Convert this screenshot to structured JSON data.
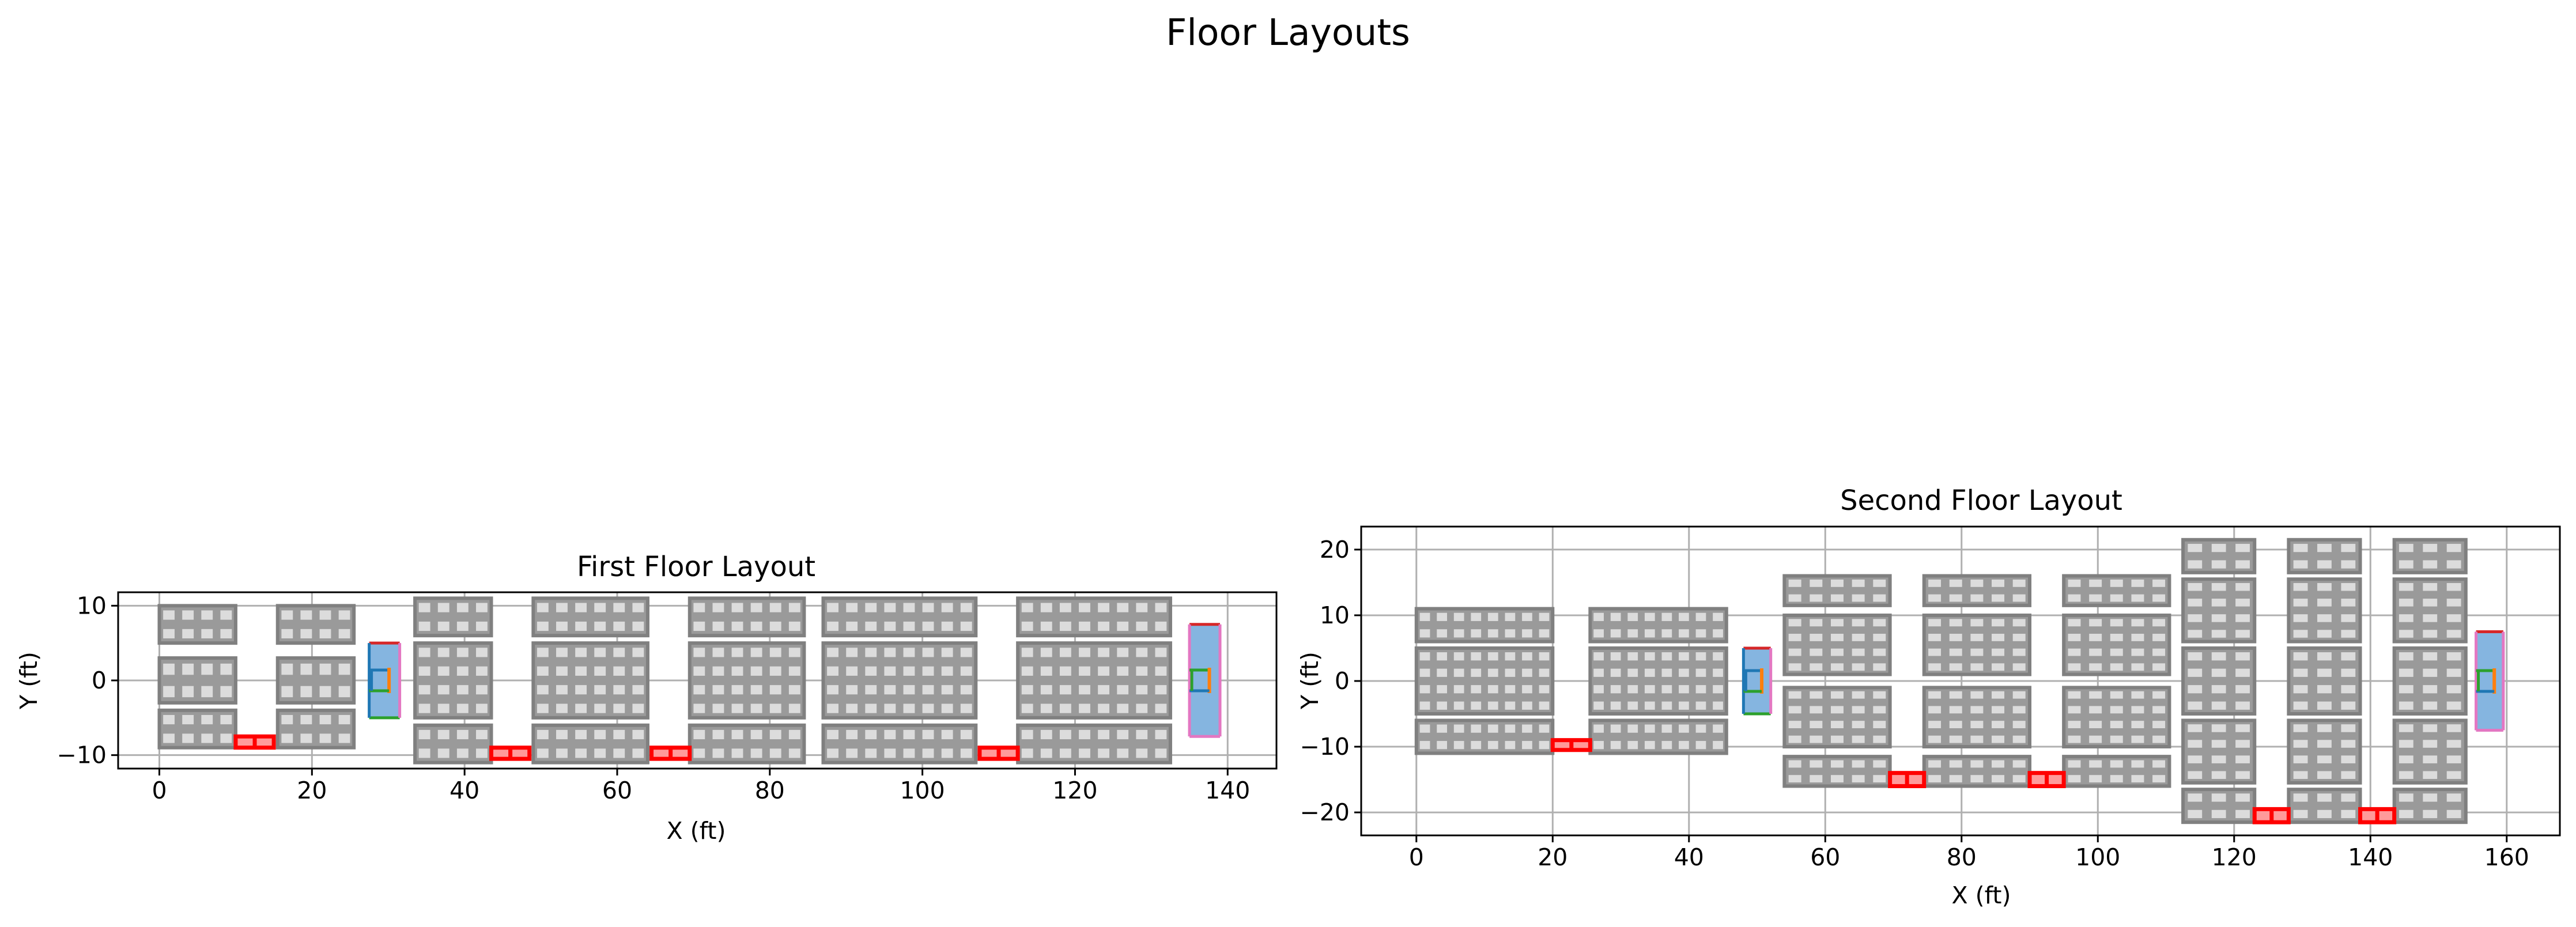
{
  "figure": {
    "suptitle": "Floor Layouts"
  },
  "chart_data": [
    {
      "type": "scatter",
      "title": "First Floor Layout",
      "xlabel": "X (ft)",
      "ylabel": "Y (ft)",
      "xlim": [
        -5.4,
        146.4
      ],
      "ylim": [
        -11.8,
        11.8
      ],
      "xticks": [
        0,
        20,
        40,
        60,
        80,
        100,
        120,
        140
      ],
      "yticks": [
        -10,
        0,
        10
      ],
      "grid": true,
      "series": [
        {
          "kind": "rack-blocks",
          "color": "#808080",
          "items": [
            {
              "x0": 0,
              "x1": 10,
              "y0": 5,
              "y1": 10,
              "cols": 4,
              "rows": 2
            },
            {
              "x0": 0,
              "x1": 10,
              "y0": -3,
              "y1": 3,
              "cols": 4,
              "rows": 2
            },
            {
              "x0": 0,
              "x1": 10,
              "y0": -9,
              "y1": -4,
              "cols": 4,
              "rows": 2
            },
            {
              "x0": 15.5,
              "x1": 25.5,
              "y0": 5,
              "y1": 10,
              "cols": 4,
              "rows": 2
            },
            {
              "x0": 15.5,
              "x1": 25.5,
              "y0": -3,
              "y1": 3,
              "cols": 4,
              "rows": 2
            },
            {
              "x0": 15.5,
              "x1": 25.5,
              "y0": -9,
              "y1": -4,
              "cols": 4,
              "rows": 2
            },
            {
              "x0": 33.5,
              "x1": 43.5,
              "y0": 6,
              "y1": 11,
              "cols": 4,
              "rows": 2
            },
            {
              "x0": 33.5,
              "x1": 43.5,
              "y0": -5,
              "y1": 5,
              "cols": 4,
              "rows": 4
            },
            {
              "x0": 33.5,
              "x1": 43.5,
              "y0": -11,
              "y1": -6,
              "cols": 4,
              "rows": 2
            },
            {
              "x0": 49,
              "x1": 64,
              "y0": 6,
              "y1": 11,
              "cols": 6,
              "rows": 2
            },
            {
              "x0": 49,
              "x1": 64,
              "y0": -5,
              "y1": 5,
              "cols": 6,
              "rows": 4
            },
            {
              "x0": 49,
              "x1": 64,
              "y0": -11,
              "y1": -6,
              "cols": 6,
              "rows": 2
            },
            {
              "x0": 69.5,
              "x1": 84.5,
              "y0": 6,
              "y1": 11,
              "cols": 6,
              "rows": 2
            },
            {
              "x0": 69.5,
              "x1": 84.5,
              "y0": -5,
              "y1": 5,
              "cols": 6,
              "rows": 4
            },
            {
              "x0": 69.5,
              "x1": 84.5,
              "y0": -11,
              "y1": -6,
              "cols": 6,
              "rows": 2
            },
            {
              "x0": 87,
              "x1": 107,
              "y0": 6,
              "y1": 11,
              "cols": 8,
              "rows": 2
            },
            {
              "x0": 87,
              "x1": 107,
              "y0": -5,
              "y1": 5,
              "cols": 8,
              "rows": 4
            },
            {
              "x0": 87,
              "x1": 107,
              "y0": -11,
              "y1": -6,
              "cols": 8,
              "rows": 2
            },
            {
              "x0": 112.5,
              "x1": 132.5,
              "y0": 6,
              "y1": 11,
              "cols": 8,
              "rows": 2
            },
            {
              "x0": 112.5,
              "x1": 132.5,
              "y0": -5,
              "y1": 5,
              "cols": 8,
              "rows": 4
            },
            {
              "x0": 112.5,
              "x1": 132.5,
              "y0": -11,
              "y1": -6,
              "cols": 8,
              "rows": 2
            }
          ]
        },
        {
          "kind": "red-markers",
          "color": "#ff0000",
          "items": [
            {
              "x0": 10,
              "x1": 15,
              "y0": -9,
              "y1": -7.5
            },
            {
              "x0": 43.5,
              "x1": 48.5,
              "y0": -10.5,
              "y1": -9
            },
            {
              "x0": 64.5,
              "x1": 69.5,
              "y0": -10.5,
              "y1": -9
            },
            {
              "x0": 107.5,
              "x1": 112.5,
              "y0": -10.5,
              "y1": -9
            }
          ]
        },
        {
          "kind": "blue-panels",
          "fill": "#85b5e0",
          "items": [
            {
              "x0": 27.5,
              "x1": 31.5,
              "y0": -5,
              "y1": 5,
              "edges": [
                "#d62728",
                "#2ca02c",
                "#1f77b4",
                "#e377c2"
              ],
              "inner": [
                "#1f77b4",
                "#ff7f0e",
                "#2ca02c"
              ]
            },
            {
              "x0": 135,
              "x1": 139,
              "y0": -7.5,
              "y1": 7.5,
              "edges": [
                "#d62728",
                "#e377c2",
                "#e377c2",
                "#e377c2"
              ],
              "inner": [
                "#2ca02c",
                "#ff7f0e",
                "#1f77b4"
              ]
            }
          ]
        }
      ]
    },
    {
      "type": "scatter",
      "title": "Second Floor Layout",
      "xlabel": "X (ft)",
      "ylabel": "Y (ft)",
      "xlim": [
        -8.1,
        167.8
      ],
      "ylim": [
        -23.5,
        23.5
      ],
      "xticks": [
        0,
        20,
        40,
        60,
        80,
        100,
        120,
        140,
        160
      ],
      "yticks": [
        -20,
        -10,
        0,
        10,
        20
      ],
      "grid": true,
      "series": [
        {
          "kind": "rack-blocks",
          "color": "#808080",
          "items": [
            {
              "x0": 0,
              "x1": 20,
              "y0": 6,
              "y1": 11,
              "cols": 8,
              "rows": 2
            },
            {
              "x0": 0,
              "x1": 20,
              "y0": -5,
              "y1": 5,
              "cols": 8,
              "rows": 4
            },
            {
              "x0": 0,
              "x1": 20,
              "y0": -11,
              "y1": -6,
              "cols": 8,
              "rows": 2
            },
            {
              "x0": 25.5,
              "x1": 45.5,
              "y0": 6,
              "y1": 11,
              "cols": 8,
              "rows": 2
            },
            {
              "x0": 25.5,
              "x1": 45.5,
              "y0": -5,
              "y1": 5,
              "cols": 8,
              "rows": 4
            },
            {
              "x0": 25.5,
              "x1": 45.5,
              "y0": -11,
              "y1": -6,
              "cols": 8,
              "rows": 2
            },
            {
              "x0": 54,
              "x1": 69.5,
              "y0": 11.5,
              "y1": 16,
              "cols": 5,
              "rows": 2
            },
            {
              "x0": 54,
              "x1": 69.5,
              "y0": 1,
              "y1": 10,
              "cols": 5,
              "rows": 4
            },
            {
              "x0": 54,
              "x1": 69.5,
              "y0": -10,
              "y1": -1,
              "cols": 5,
              "rows": 4
            },
            {
              "x0": 54,
              "x1": 69.5,
              "y0": -16,
              "y1": -11.5,
              "cols": 5,
              "rows": 2
            },
            {
              "x0": 74.5,
              "x1": 90,
              "y0": 11.5,
              "y1": 16,
              "cols": 5,
              "rows": 2
            },
            {
              "x0": 74.5,
              "x1": 90,
              "y0": 1,
              "y1": 10,
              "cols": 5,
              "rows": 4
            },
            {
              "x0": 74.5,
              "x1": 90,
              "y0": -10,
              "y1": -1,
              "cols": 5,
              "rows": 4
            },
            {
              "x0": 74.5,
              "x1": 90,
              "y0": -16,
              "y1": -11.5,
              "cols": 5,
              "rows": 2
            },
            {
              "x0": 95,
              "x1": 110.5,
              "y0": 11.5,
              "y1": 16,
              "cols": 5,
              "rows": 2
            },
            {
              "x0": 95,
              "x1": 110.5,
              "y0": 1,
              "y1": 10,
              "cols": 5,
              "rows": 4
            },
            {
              "x0": 95,
              "x1": 110.5,
              "y0": -10,
              "y1": -1,
              "cols": 5,
              "rows": 4
            },
            {
              "x0": 95,
              "x1": 110.5,
              "y0": -16,
              "y1": -11.5,
              "cols": 5,
              "rows": 2
            },
            {
              "x0": 112.5,
              "x1": 123,
              "y0": 16.5,
              "y1": 21.5,
              "cols": 3,
              "rows": 2
            },
            {
              "x0": 112.5,
              "x1": 123,
              "y0": 6,
              "y1": 15.5,
              "cols": 3,
              "rows": 4
            },
            {
              "x0": 112.5,
              "x1": 123,
              "y0": -5,
              "y1": 5,
              "cols": 3,
              "rows": 4
            },
            {
              "x0": 112.5,
              "x1": 123,
              "y0": -15.5,
              "y1": -6,
              "cols": 3,
              "rows": 4
            },
            {
              "x0": 112.5,
              "x1": 123,
              "y0": -21.5,
              "y1": -16.5,
              "cols": 3,
              "rows": 2
            },
            {
              "x0": 128,
              "x1": 138.5,
              "y0": 16.5,
              "y1": 21.5,
              "cols": 3,
              "rows": 2
            },
            {
              "x0": 128,
              "x1": 138.5,
              "y0": 6,
              "y1": 15.5,
              "cols": 3,
              "rows": 4
            },
            {
              "x0": 128,
              "x1": 138.5,
              "y0": -5,
              "y1": 5,
              "cols": 3,
              "rows": 4
            },
            {
              "x0": 128,
              "x1": 138.5,
              "y0": -15.5,
              "y1": -6,
              "cols": 3,
              "rows": 4
            },
            {
              "x0": 128,
              "x1": 138.5,
              "y0": -21.5,
              "y1": -16.5,
              "cols": 3,
              "rows": 2
            },
            {
              "x0": 143.5,
              "x1": 154,
              "y0": 16.5,
              "y1": 21.5,
              "cols": 3,
              "rows": 2
            },
            {
              "x0": 143.5,
              "x1": 154,
              "y0": 6,
              "y1": 15.5,
              "cols": 3,
              "rows": 4
            },
            {
              "x0": 143.5,
              "x1": 154,
              "y0": -5,
              "y1": 5,
              "cols": 3,
              "rows": 4
            },
            {
              "x0": 143.5,
              "x1": 154,
              "y0": -15.5,
              "y1": -6,
              "cols": 3,
              "rows": 4
            },
            {
              "x0": 143.5,
              "x1": 154,
              "y0": -21.5,
              "y1": -16.5,
              "cols": 3,
              "rows": 2
            }
          ]
        },
        {
          "kind": "red-markers",
          "color": "#ff0000",
          "items": [
            {
              "x0": 20,
              "x1": 25.5,
              "y0": -10.5,
              "y1": -9
            },
            {
              "x0": 69.5,
              "x1": 74.5,
              "y0": -16,
              "y1": -14
            },
            {
              "x0": 90,
              "x1": 95,
              "y0": -16,
              "y1": -14
            },
            {
              "x0": 123,
              "x1": 128,
              "y0": -21.5,
              "y1": -19.5
            },
            {
              "x0": 138.5,
              "x1": 143.5,
              "y0": -21.5,
              "y1": -19.5
            }
          ]
        },
        {
          "kind": "blue-panels",
          "fill": "#85b5e0",
          "items": [
            {
              "x0": 48,
              "x1": 52,
              "y0": -5,
              "y1": 5,
              "edges": [
                "#d62728",
                "#2ca02c",
                "#1f77b4",
                "#e377c2"
              ],
              "inner": [
                "#1f77b4",
                "#ff7f0e",
                "#2ca02c"
              ]
            },
            {
              "x0": 155.5,
              "x1": 159.5,
              "y0": -7.5,
              "y1": 7.5,
              "edges": [
                "#d62728",
                "#e377c2",
                "#e377c2",
                "#e377c2"
              ],
              "inner": [
                "#2ca02c",
                "#ff7f0e",
                "#1f77b4"
              ]
            }
          ]
        }
      ]
    }
  ]
}
